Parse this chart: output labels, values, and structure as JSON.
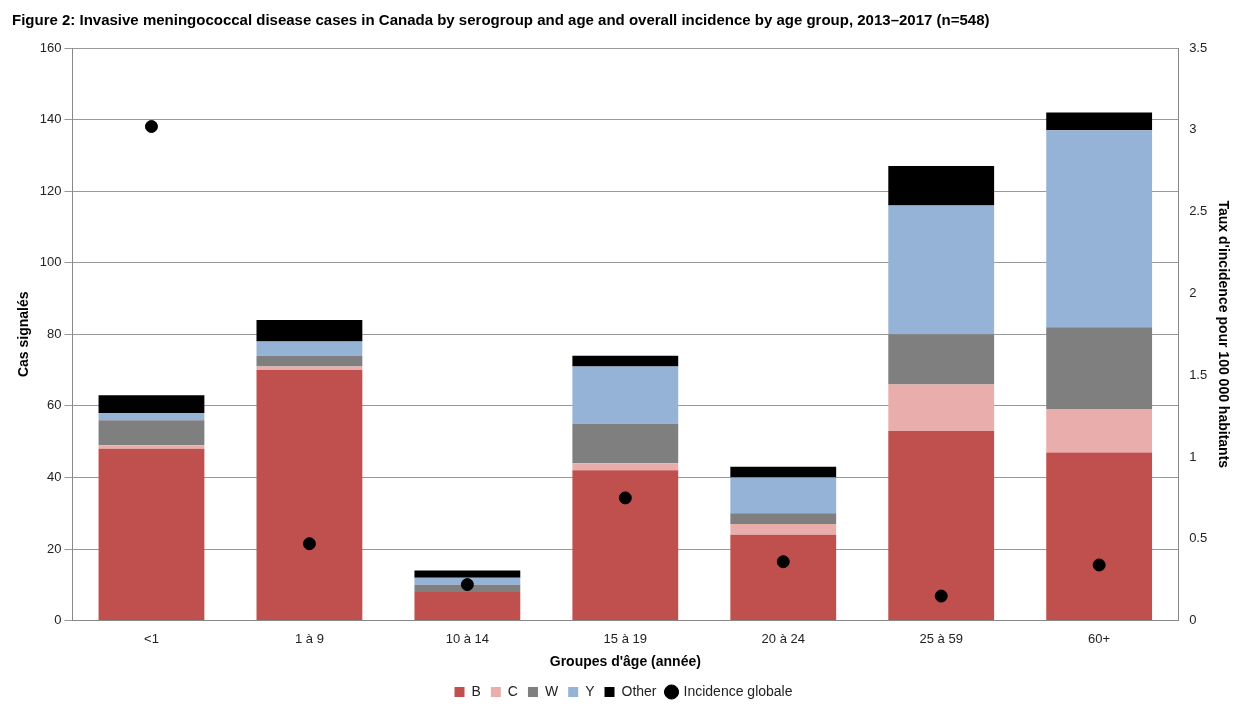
{
  "chart_data": {
    "type": "bar",
    "stacked": true,
    "title": "Figure 2: Invasive meningococcal disease cases in Canada by serogroup and age and overall incidence by age group, 2013–2017 (n=548)",
    "xlabel": "Groupes d'âge (année)",
    "ylabel": "Cas signalés",
    "y2label": "Taux d'incidence pour 100 000 habitants",
    "categories": [
      "<1",
      "1 à 9",
      "10 à 14",
      "15 à 19",
      "20 à 24",
      "25 à 59",
      "60+"
    ],
    "series": [
      {
        "name": "B",
        "color": "#c0504d",
        "values": [
          48,
          70,
          8,
          42,
          24,
          53,
          47
        ]
      },
      {
        "name": "C",
        "color": "#e9aeac",
        "values": [
          1,
          1,
          0,
          2,
          3,
          13,
          12
        ]
      },
      {
        "name": "W",
        "color": "#7f7f7f",
        "values": [
          7,
          3,
          2,
          11,
          3,
          14,
          23
        ]
      },
      {
        "name": "Y",
        "color": "#95b3d7",
        "values": [
          2,
          4,
          2,
          16,
          10,
          36,
          55
        ]
      },
      {
        "name": "Other",
        "color": "#000000",
        "values": [
          5,
          6,
          2,
          3,
          3,
          11,
          5
        ]
      },
      {
        "name": "Incidence globale",
        "type": "scatter",
        "axis": "y2",
        "marker": "circle",
        "color": "#000000",
        "values": [
          3.02,
          0.47,
          0.22,
          0.75,
          0.36,
          0.15,
          0.34
        ]
      }
    ],
    "ylim": [
      0,
      160
    ],
    "yticks": [
      0,
      20,
      40,
      60,
      80,
      100,
      120,
      140,
      160
    ],
    "y2lim": [
      0,
      3.5
    ],
    "y2ticks": [
      0,
      0.5,
      1,
      1.5,
      2,
      2.5,
      3,
      3.5
    ],
    "grid": "y",
    "legend": "bottom"
  }
}
